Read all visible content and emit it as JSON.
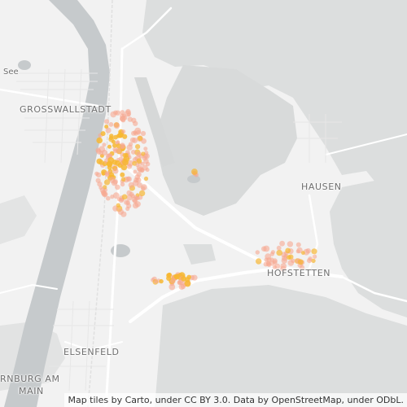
{
  "map": {
    "labels": [
      {
        "id": "grosswallstadt",
        "text": "GROSSWALLSTADT"
      },
      {
        "id": "hausen",
        "text": "HAUSEN"
      },
      {
        "id": "hofstetten",
        "text": "HOFSTETTEN"
      },
      {
        "id": "elsenfeld",
        "text": "ELSENFELD"
      },
      {
        "id": "erlenbach-1",
        "text": "RNBURG AM"
      },
      {
        "id": "erlenbach-2",
        "text": "MAIN"
      },
      {
        "id": "see",
        "text": "See"
      }
    ],
    "attribution": "Map tiles by Carto, under CC BY 3.0. Data by OpenStreetMap, under ODbL.",
    "colors": {
      "background": "#f2f2f2",
      "forest": "#dcdede",
      "river": "#c6cacc",
      "road": "#ffffff",
      "point_light": "#f6a891",
      "point_dense": "#f7b733"
    }
  }
}
